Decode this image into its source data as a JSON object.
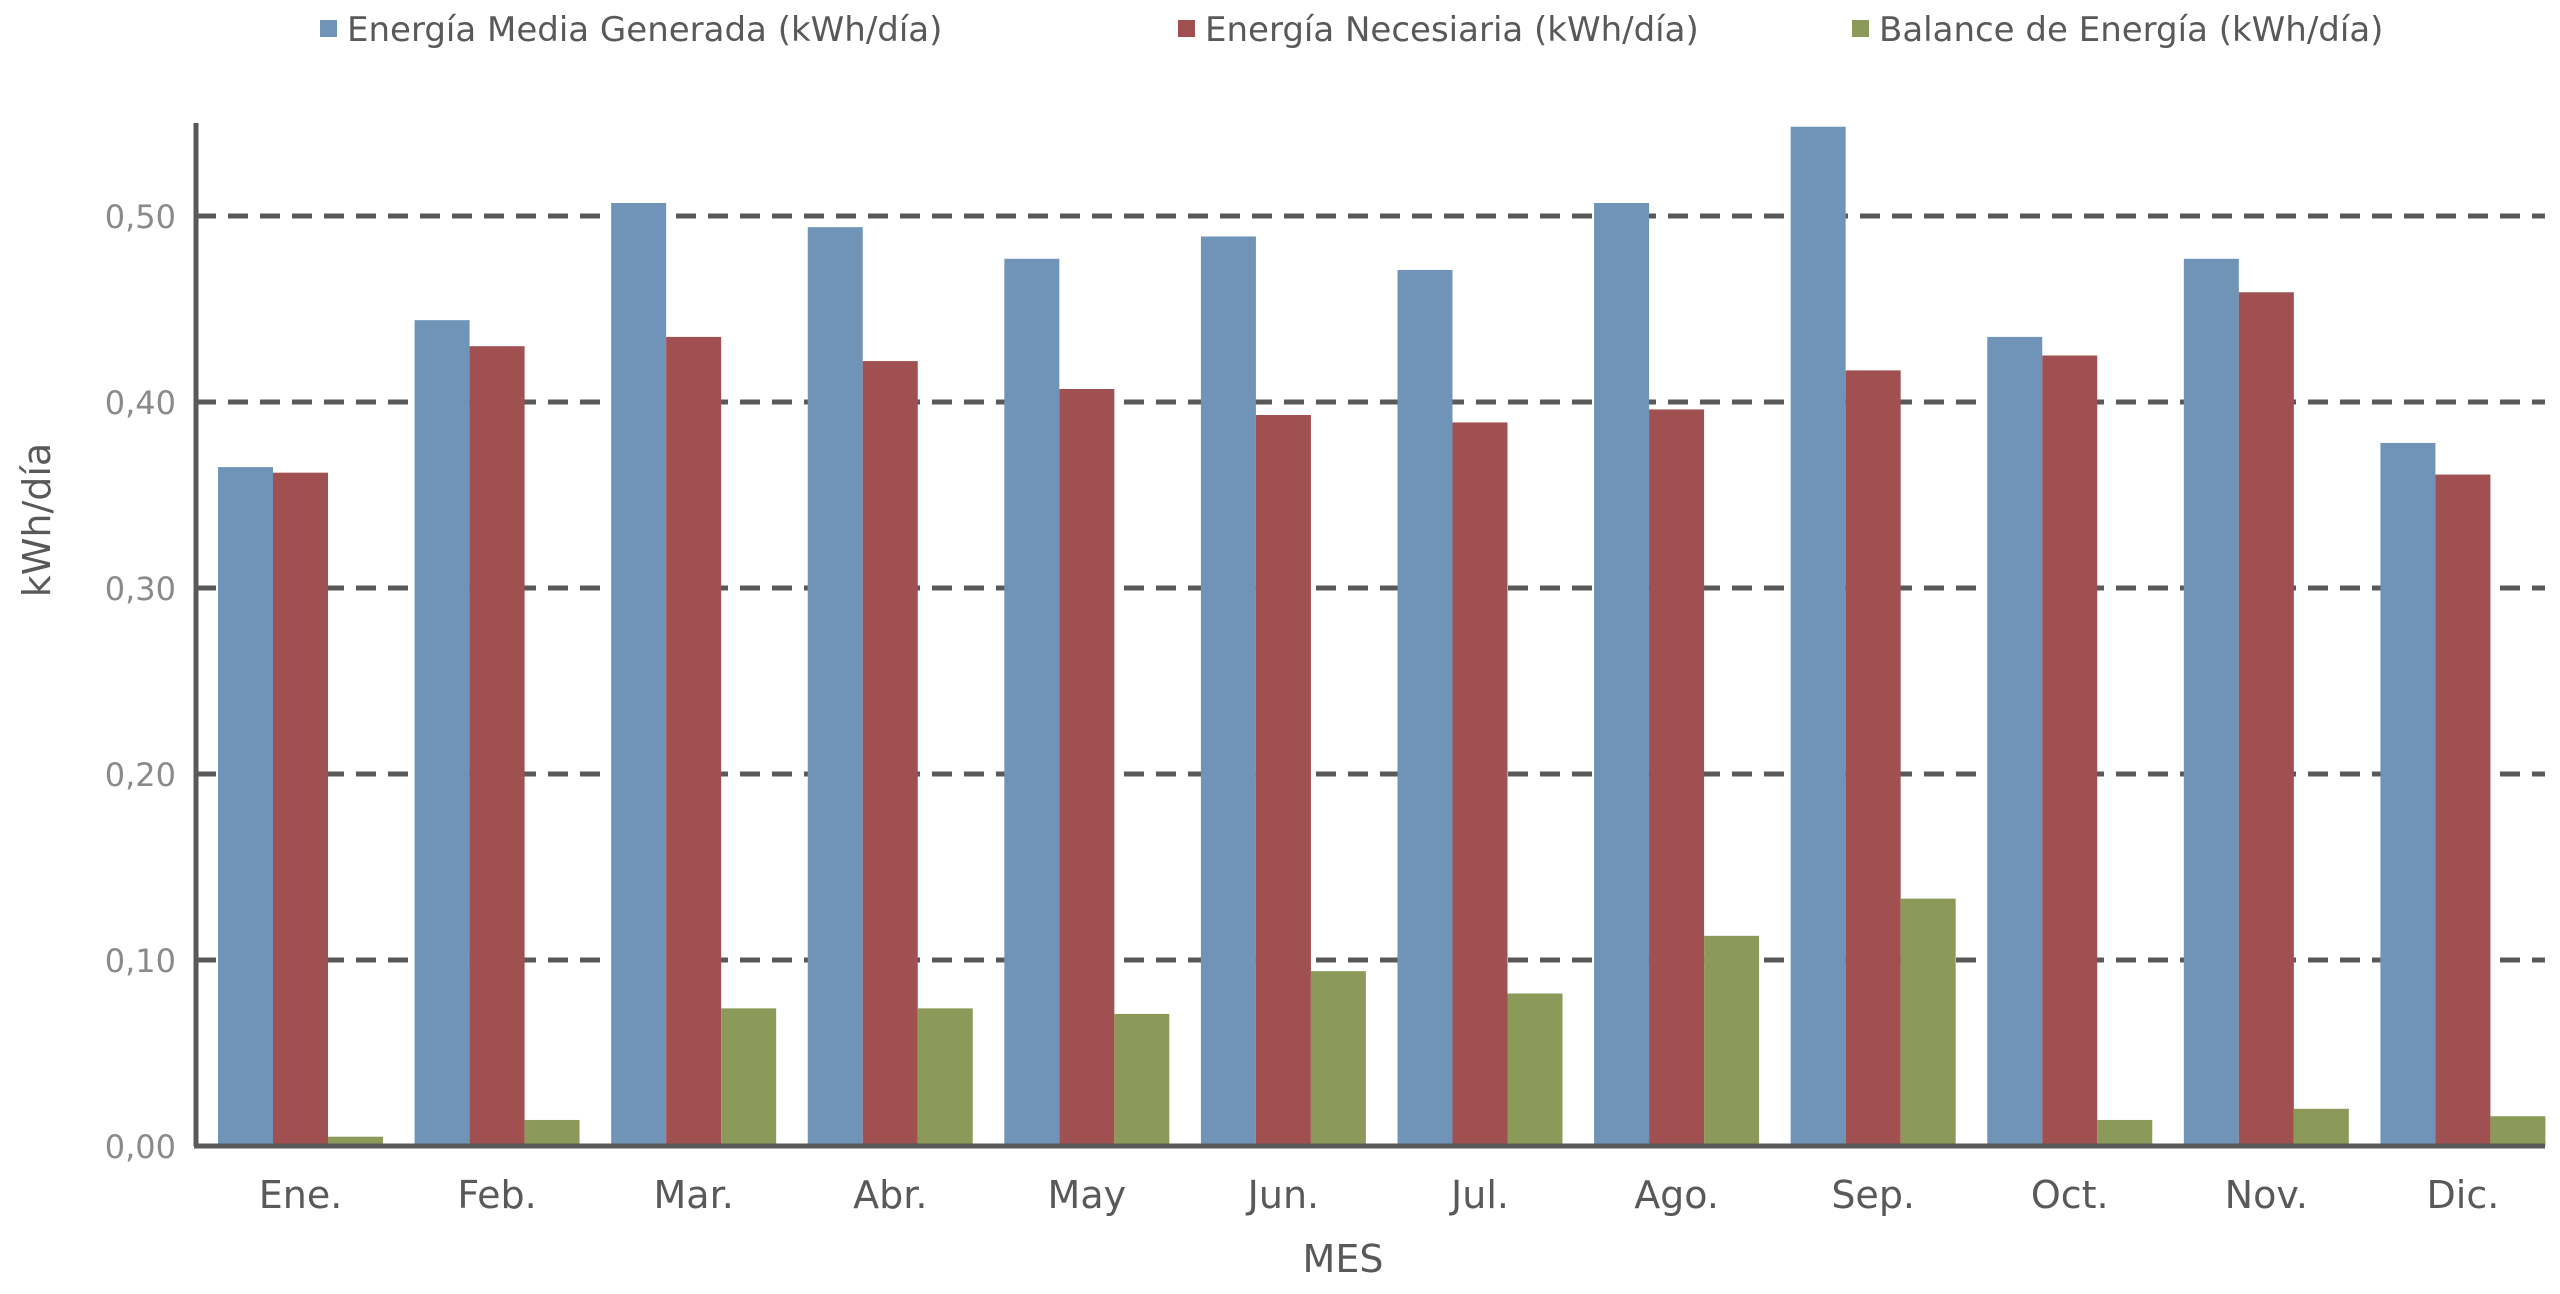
{
  "chart_data": {
    "type": "bar",
    "title": "",
    "xlabel": "MES",
    "ylabel": "kWh/día",
    "ylim": [
      0,
      0.55
    ],
    "yticks": [
      {
        "value": 0.0,
        "label": "0,00"
      },
      {
        "value": 0.1,
        "label": "0,10"
      },
      {
        "value": 0.2,
        "label": "0,20"
      },
      {
        "value": 0.3,
        "label": "0,30"
      },
      {
        "value": 0.4,
        "label": "0,40"
      },
      {
        "value": 0.5,
        "label": "0,50"
      }
    ],
    "grid": true,
    "legend_position": "top",
    "categories": [
      "Ene.",
      "Feb.",
      "Mar.",
      "Abr.",
      "May",
      "Jun.",
      "Jul.",
      "Ago.",
      "Sep.",
      "Oct.",
      "Nov.",
      "Dic."
    ],
    "series": [
      {
        "name": "Energía Media Generada (kWh/día)",
        "color": "#7094b8",
        "values": [
          0.365,
          0.444,
          0.507,
          0.494,
          0.477,
          0.489,
          0.471,
          0.507,
          0.548,
          0.435,
          0.477,
          0.378
        ]
      },
      {
        "name": "Energía Necesiaria (kWh/día)",
        "color": "#a05050",
        "values": [
          0.362,
          0.43,
          0.435,
          0.422,
          0.407,
          0.393,
          0.389,
          0.396,
          0.417,
          0.425,
          0.459,
          0.361
        ]
      },
      {
        "name": "Balance de Energía (kWh/día)",
        "color": "#8c9a59",
        "values": [
          0.005,
          0.014,
          0.074,
          0.074,
          0.071,
          0.094,
          0.082,
          0.113,
          0.133,
          0.014,
          0.02,
          0.016
        ]
      }
    ]
  }
}
